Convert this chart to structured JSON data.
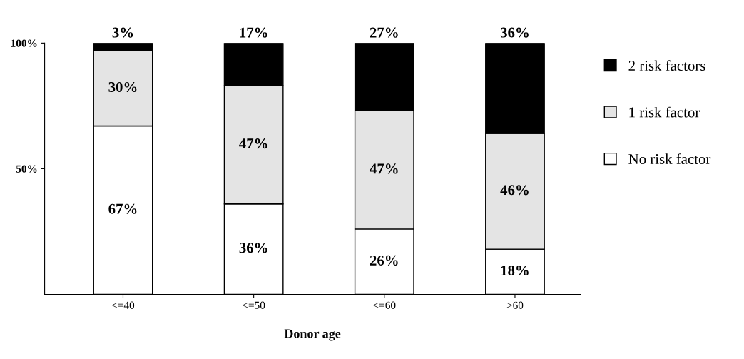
{
  "chart_data": {
    "type": "bar",
    "stacked": true,
    "xlabel": "Donor age",
    "categories": [
      "<=40",
      "<=50",
      "<=60",
      ">60"
    ],
    "series": [
      {
        "name": "No risk factor",
        "color": "#ffffff",
        "values": [
          67,
          36,
          26,
          18
        ],
        "value_labels": [
          "67%",
          "36%",
          "26%",
          "18%"
        ]
      },
      {
        "name": "1 risk factor",
        "color": "#e4e4e4",
        "values": [
          30,
          47,
          47,
          46
        ],
        "value_labels": [
          "30%",
          "47%",
          "47%",
          "46%"
        ]
      },
      {
        "name": "2 risk factors",
        "color": "#000000",
        "values": [
          3,
          17,
          27,
          36
        ],
        "value_labels": [
          "3%",
          "17%",
          "27%",
          "36%"
        ]
      }
    ],
    "ylim": [
      0,
      100
    ],
    "yticks": [
      {
        "value": 50,
        "label": "50%"
      },
      {
        "value": 100,
        "label": "100%"
      }
    ],
    "grid": false,
    "legend": "right"
  }
}
